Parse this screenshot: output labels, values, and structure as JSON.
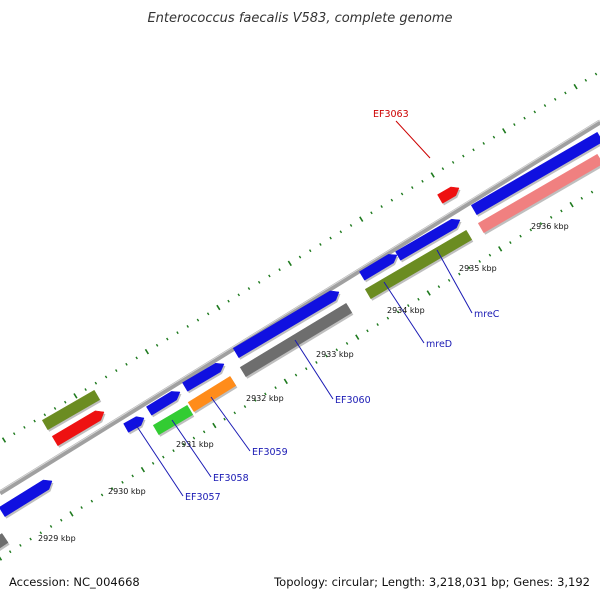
{
  "title": "Enterococcus faecalis V583, complete genome",
  "footer": {
    "accession": "Accession: NC_004668",
    "topology": "Topology: circular; Length: 3,218,031 bp; Genes: 3,192"
  },
  "colors": {
    "backbone": "#999999",
    "tick": "#1e7a1e",
    "label_blue": "#1a1ab4",
    "label_red": "#cc0000",
    "feature_blue": "#1010e0",
    "feature_grey": "#6e6e6e",
    "feature_olive": "#6b8c21",
    "feature_red": "#ee1111",
    "feature_pink": "#f08080",
    "feature_green": "#33cc33",
    "feature_orange": "#ff8c1a"
  },
  "kbp_labels": [
    "2929 kbp",
    "2930 kbp",
    "2931 kbp",
    "2932 kbp",
    "2933 kbp",
    "2934 kbp",
    "2935 kbp",
    "2936 kbp"
  ],
  "gene_labels": [
    "EF3057",
    "EF3058",
    "EF3059",
    "EF3060",
    "mreD",
    "mreC",
    "EF3063"
  ]
}
